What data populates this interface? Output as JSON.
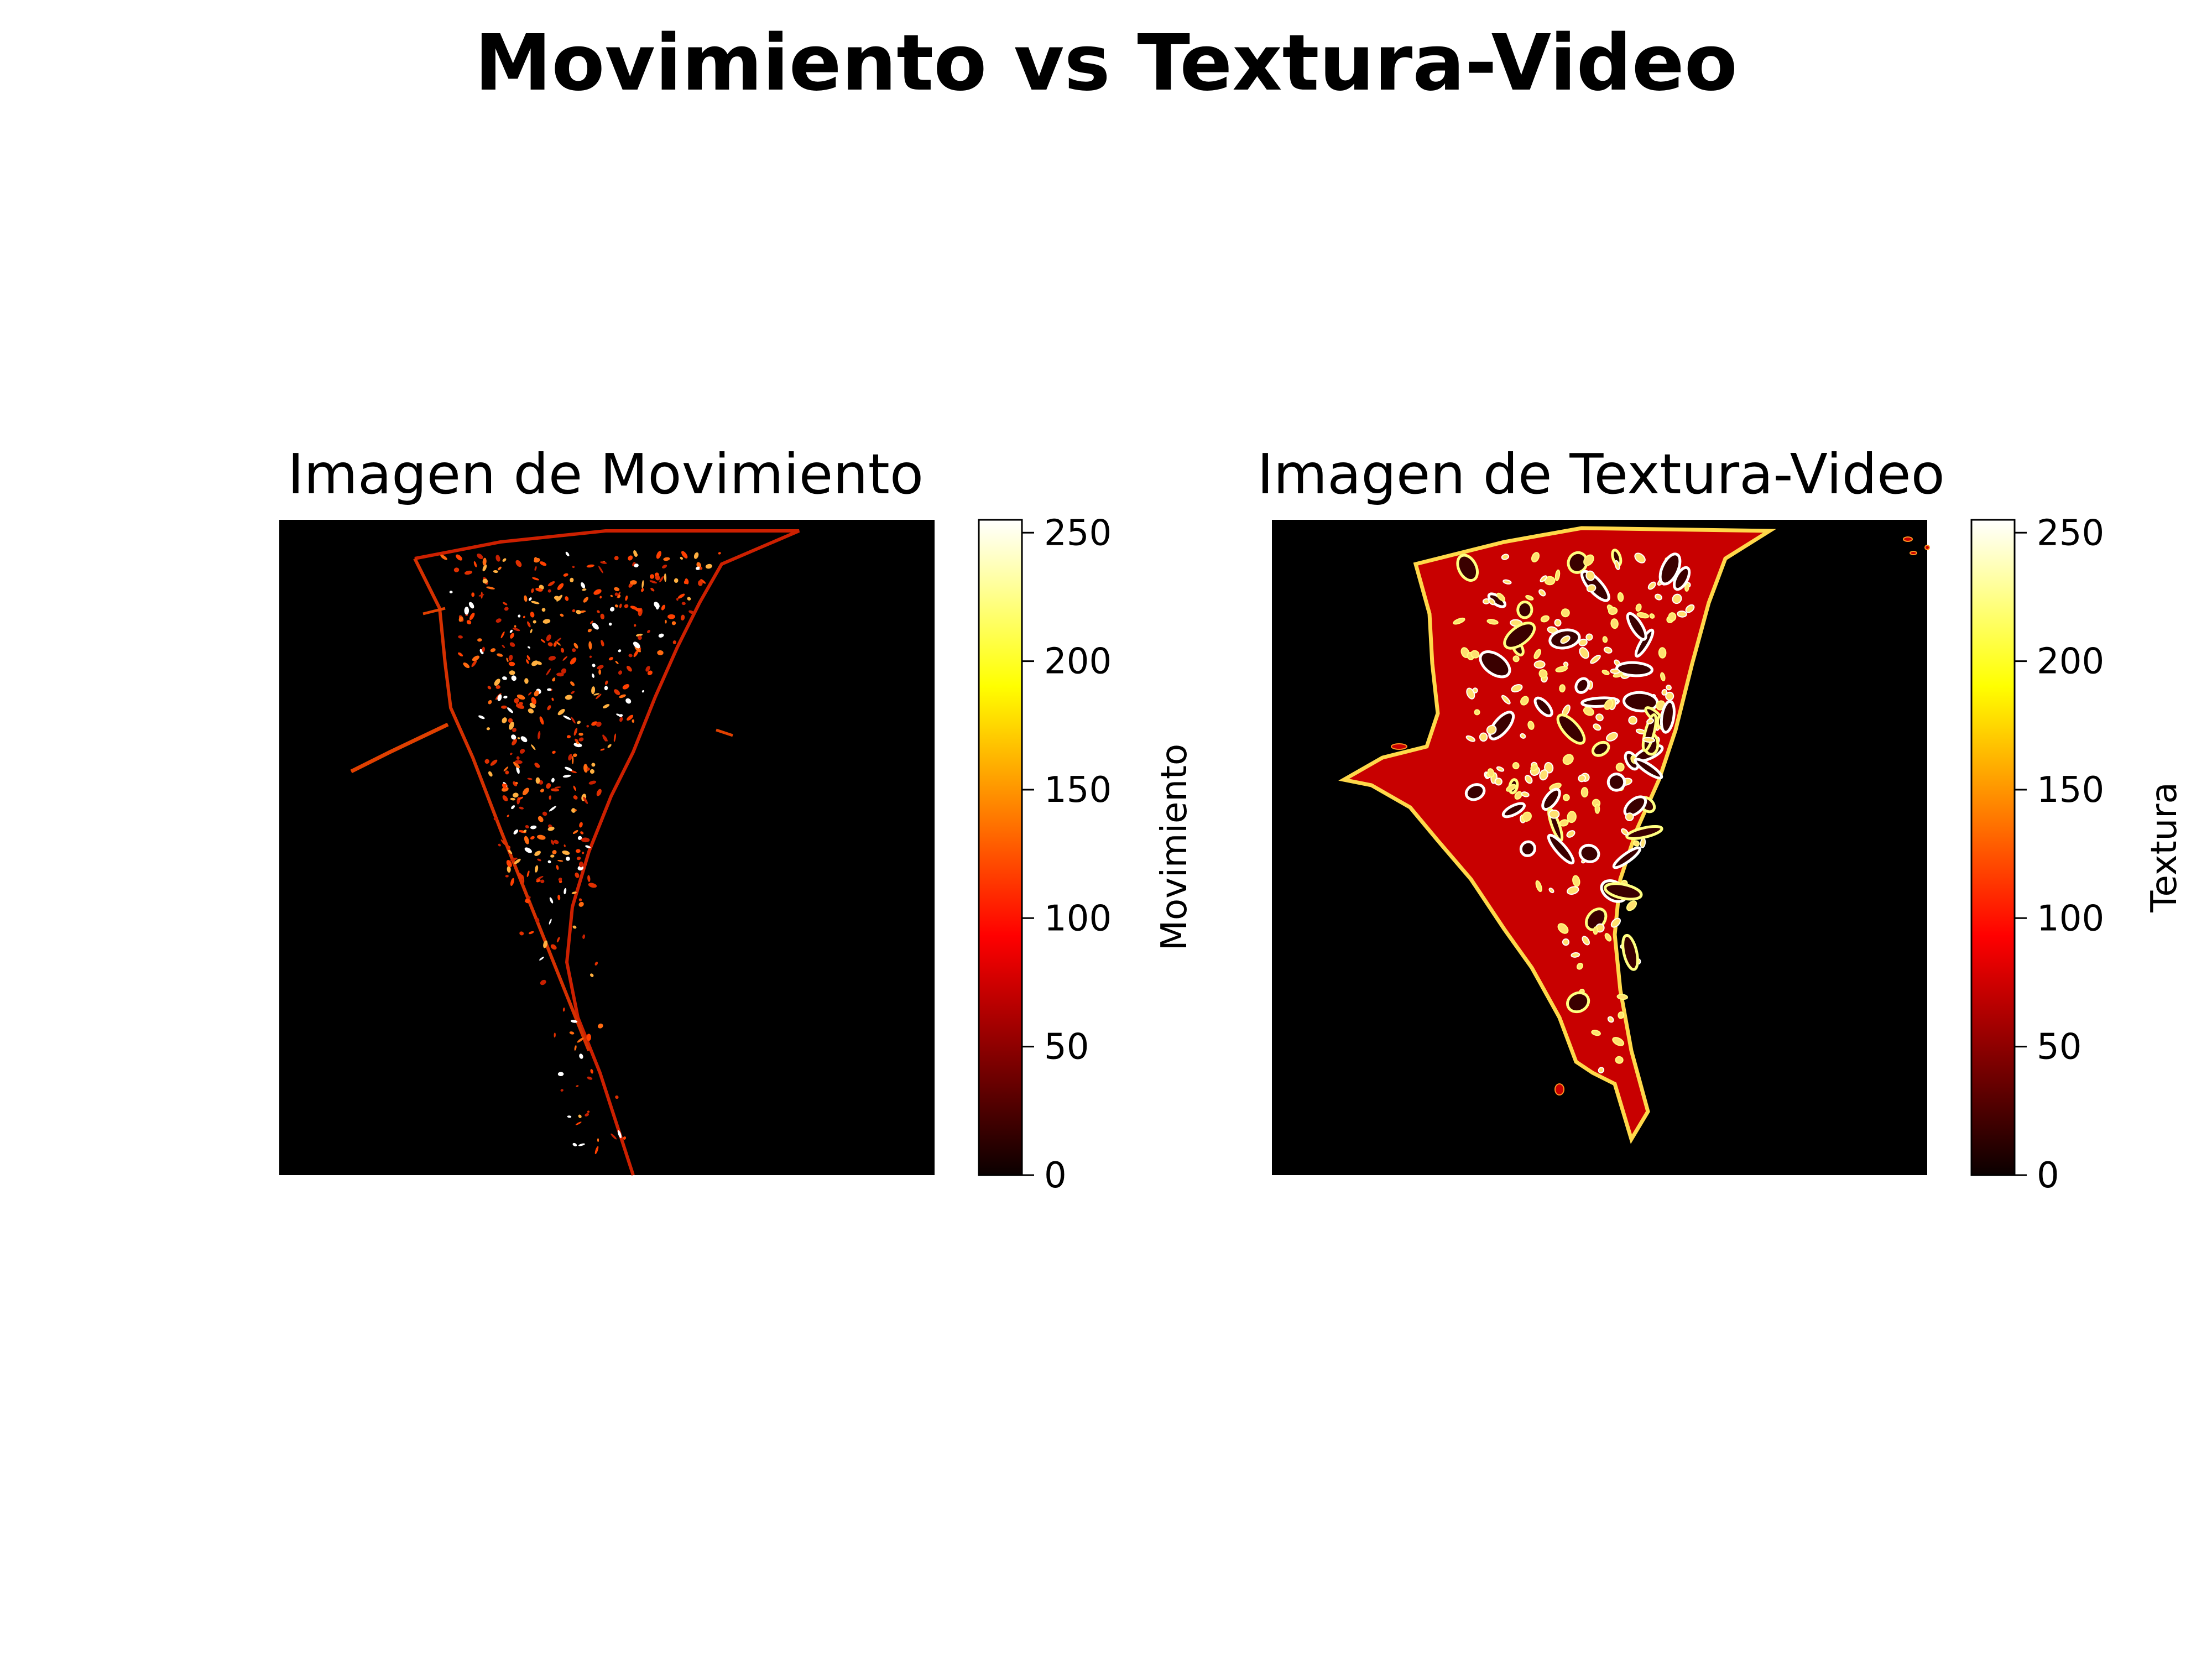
{
  "suptitle": "Movimiento vs Textura-Video",
  "chart_data": [
    {
      "type": "heatmap",
      "title": "Imagen de Movimiento",
      "colormap": "hot",
      "colorbar": {
        "label": "Movimiento",
        "range": [
          0,
          255
        ],
        "ticks": [
          0,
          50,
          100,
          150,
          200,
          250
        ]
      },
      "axes_visible": false
    },
    {
      "type": "heatmap",
      "title": "Imagen de Textura-Video",
      "colormap": "hot",
      "colorbar": {
        "label": "Textura",
        "range": [
          0,
          255
        ],
        "ticks": [
          0,
          50,
          100,
          150,
          200,
          250
        ]
      },
      "axes_visible": false
    }
  ]
}
